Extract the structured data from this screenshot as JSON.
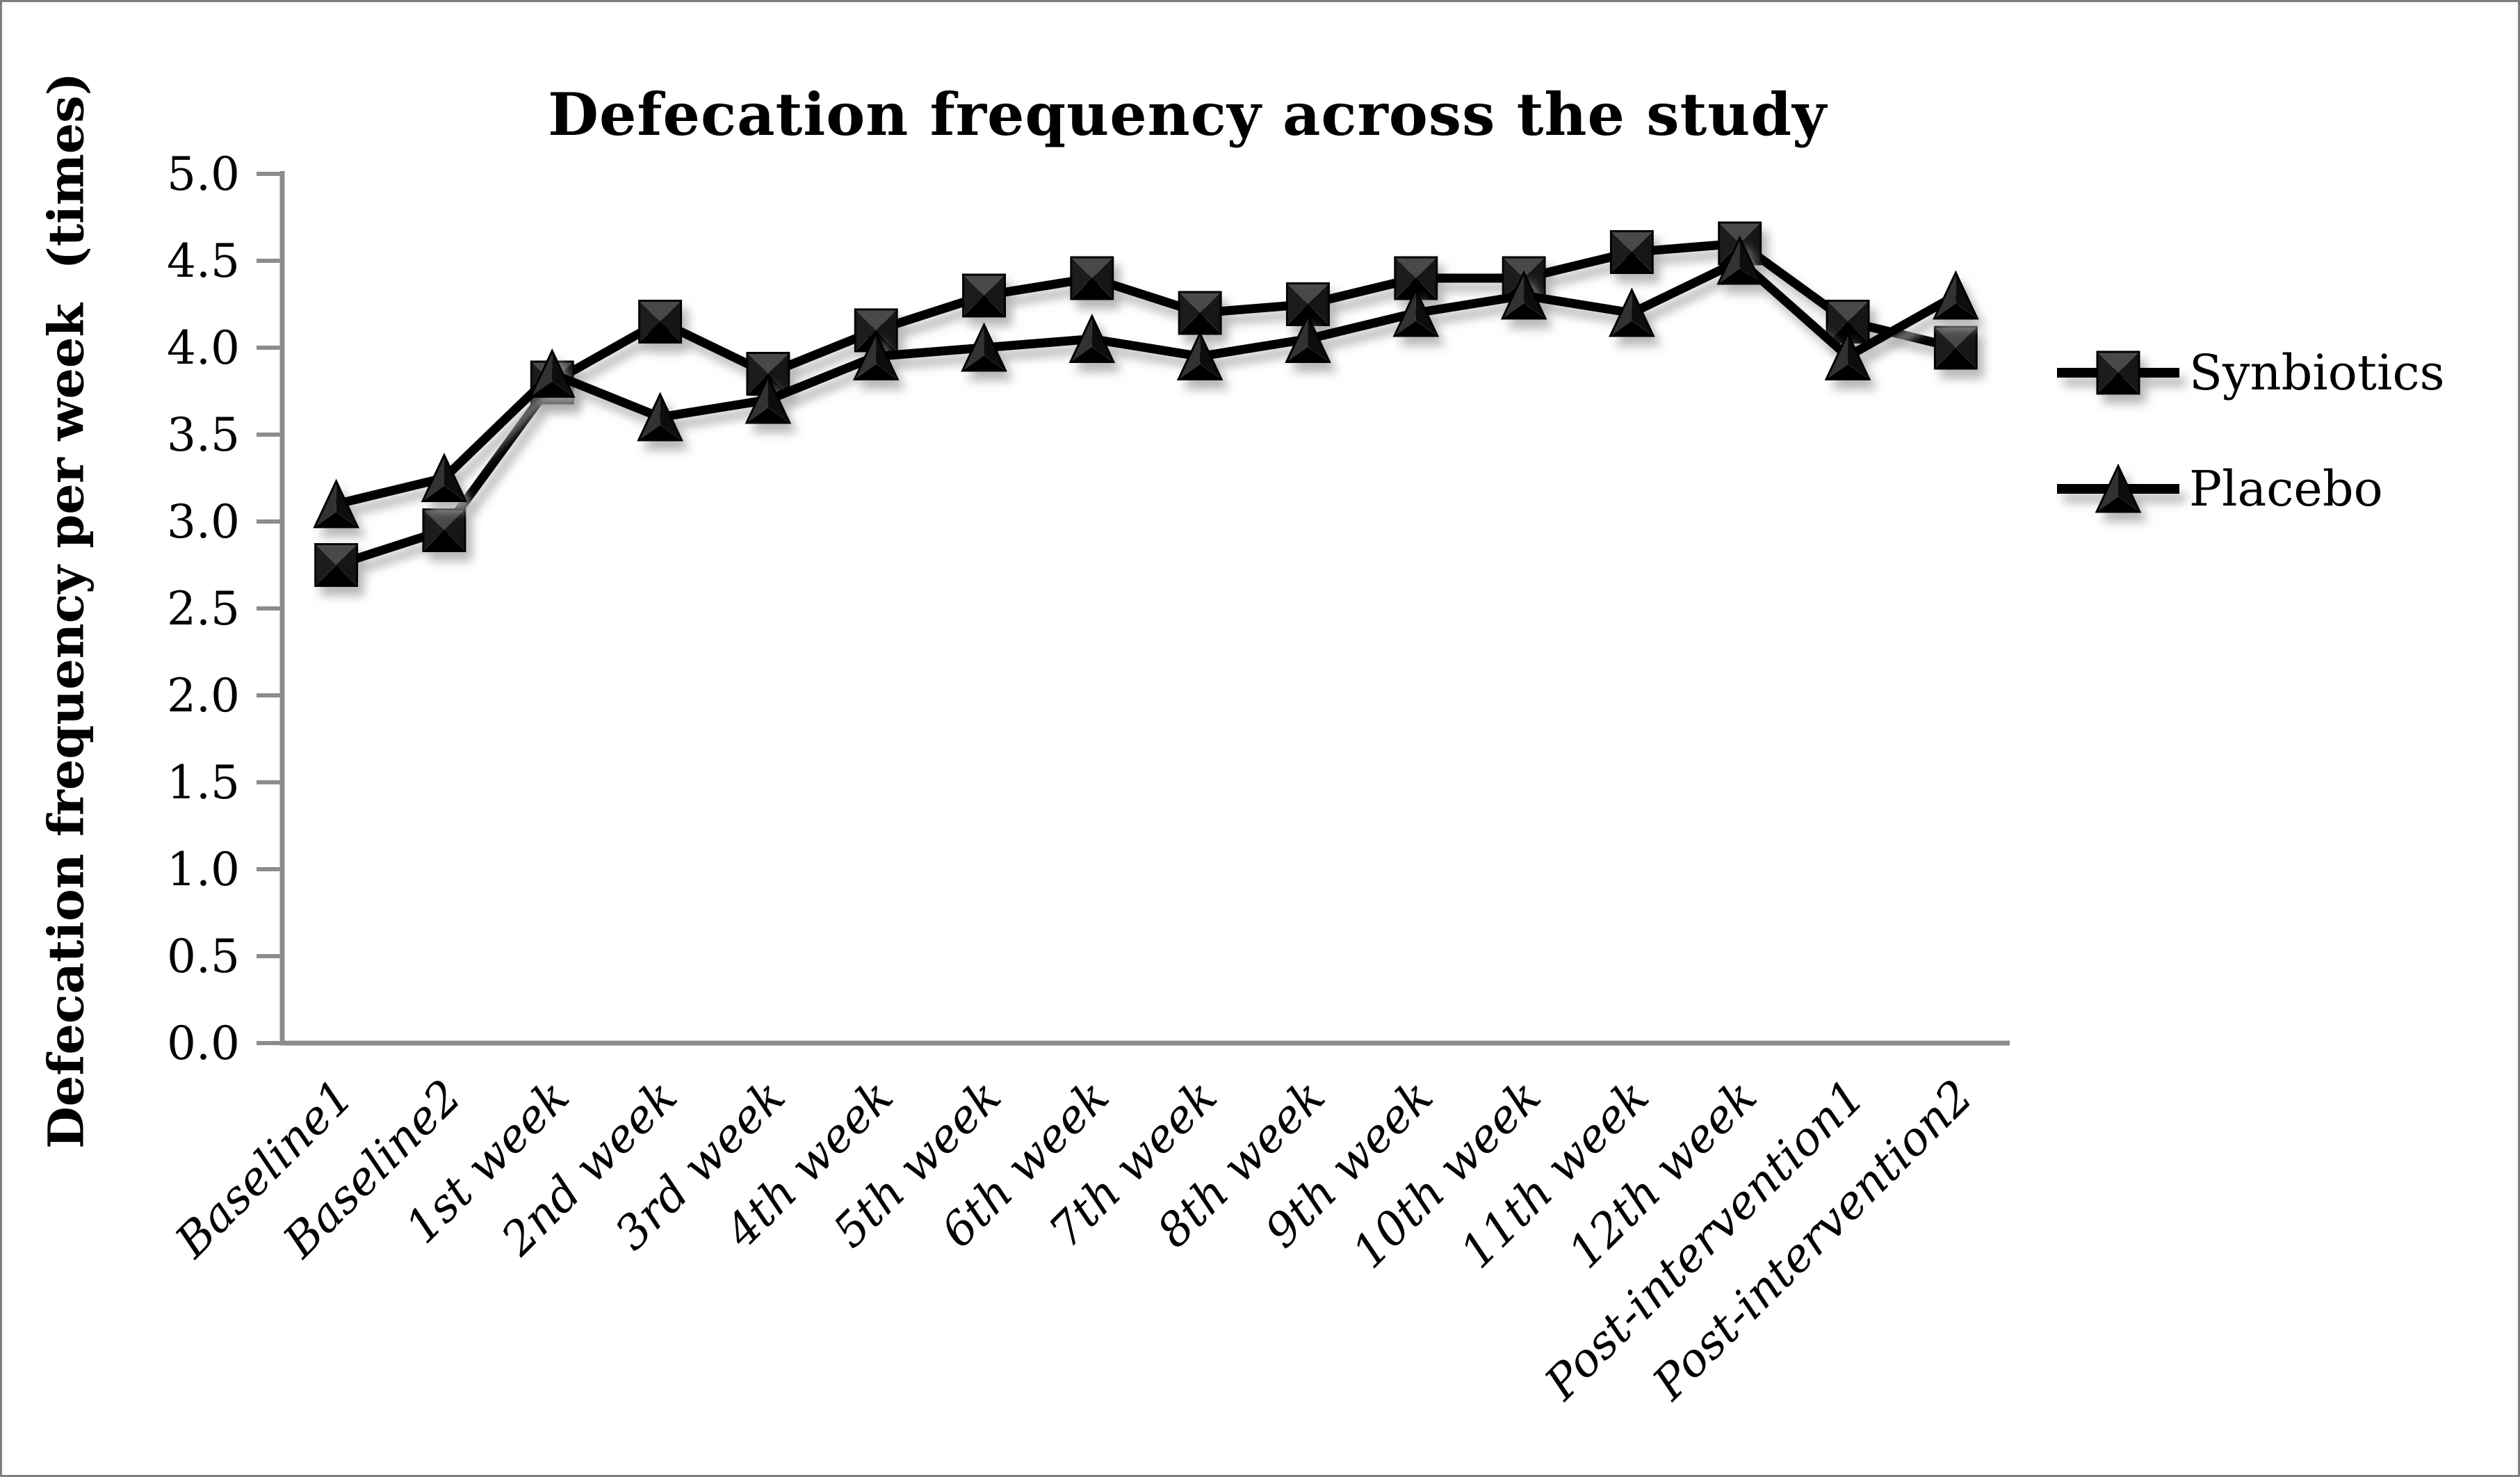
{
  "chart_data": {
    "type": "line",
    "title": "Defecation frequency across the study",
    "xlabel": "",
    "ylabel": "Defecation frequency per week  (times)",
    "categories": [
      "Baseline1",
      "Baseline2",
      "1st week",
      "2nd week",
      "3rd week",
      "4th week",
      "5th week",
      "6th week",
      "7th week",
      "8th week",
      "9th week",
      "10th week",
      "11th week",
      "12th week",
      "Post-intervention1",
      "Post-intervention2"
    ],
    "series": [
      {
        "name": "Synbiotics",
        "marker": "square",
        "color": "#000000",
        "values": [
          2.75,
          2.95,
          3.8,
          4.15,
          3.85,
          4.1,
          4.3,
          4.4,
          4.2,
          4.25,
          4.4,
          4.4,
          4.55,
          4.6,
          4.15,
          4.0
        ]
      },
      {
        "name": "Placebo",
        "marker": "triangle",
        "color": "#000000",
        "values": [
          3.1,
          3.25,
          3.85,
          3.6,
          3.7,
          3.95,
          4.0,
          4.05,
          3.95,
          4.05,
          4.2,
          4.3,
          4.2,
          4.5,
          3.95,
          4.3
        ]
      }
    ],
    "ylim": [
      0.0,
      5.0
    ],
    "ytick_step": 0.5,
    "ytick_labels": [
      "0.0",
      "0.5",
      "1.0",
      "1.5",
      "2.0",
      "2.5",
      "3.0",
      "3.5",
      "4.0",
      "4.5",
      "5.0"
    ],
    "grid": false,
    "legend_position": "right",
    "axis_color": "#8c8c8c",
    "line_color": "#000000",
    "text_color": "#000000",
    "background": "#ffffff",
    "frame_border_color": "#7f7f7f"
  }
}
